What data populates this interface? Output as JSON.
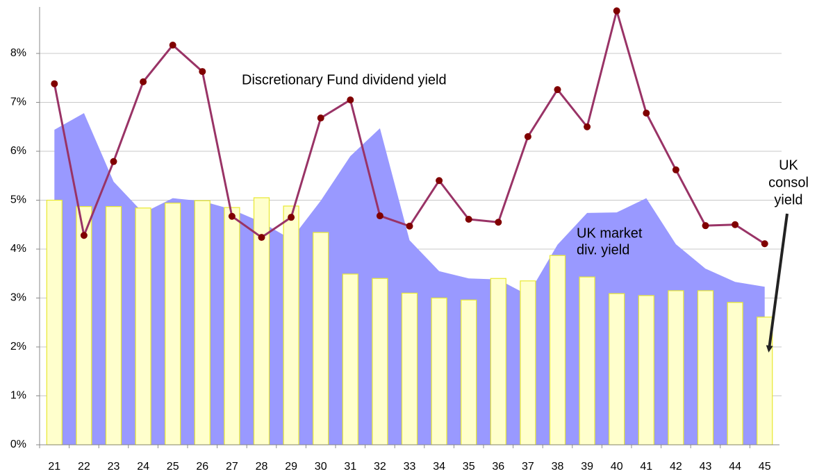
{
  "chart_data": {
    "type": "combo",
    "categories": [
      "21",
      "22",
      "23",
      "24",
      "25",
      "26",
      "27",
      "28",
      "29",
      "30",
      "31",
      "32",
      "33",
      "34",
      "35",
      "36",
      "37",
      "38",
      "39",
      "40",
      "41",
      "42",
      "43",
      "44",
      "45"
    ],
    "series": [
      {
        "kind": "area",
        "color": "#9999ff",
        "values": [
          6.44,
          6.78,
          5.38,
          4.74,
          5.04,
          4.98,
          4.81,
          4.55,
          4.2,
          4.99,
          5.9,
          6.47,
          4.18,
          3.55,
          3.4,
          3.38,
          3.06,
          4.09,
          4.74,
          4.75,
          5.04,
          4.1,
          3.6,
          3.33,
          3.23
        ]
      },
      {
        "kind": "bar",
        "color": "#ffffcc",
        "values": [
          5.0,
          4.87,
          4.87,
          4.84,
          4.94,
          4.99,
          4.85,
          5.05,
          4.88,
          4.34,
          3.49,
          3.4,
          3.1,
          3.0,
          2.96,
          3.4,
          3.35,
          3.87,
          3.43,
          3.09,
          3.05,
          3.15,
          3.15,
          2.91,
          2.61
        ]
      },
      {
        "kind": "line",
        "color": "#993366",
        "values": [
          7.38,
          4.28,
          5.79,
          7.42,
          8.17,
          7.63,
          4.67,
          4.24,
          4.65,
          6.68,
          7.05,
          4.68,
          4.47,
          5.4,
          4.61,
          4.55,
          6.3,
          7.26,
          6.5,
          8.87,
          6.78,
          5.62,
          4.48,
          4.5,
          4.11
        ]
      }
    ],
    "ylim": [
      0,
      9
    ],
    "yticks": [
      {
        "value": 0,
        "label": "0%"
      },
      {
        "value": 1,
        "label": "1%"
      },
      {
        "value": 2,
        "label": "2%"
      },
      {
        "value": 3,
        "label": "3%"
      },
      {
        "value": 4,
        "label": "4%"
      },
      {
        "value": 5,
        "label": "5%"
      },
      {
        "value": 6,
        "label": "6%"
      },
      {
        "value": 7,
        "label": "7%"
      },
      {
        "value": 8,
        "label": "8%"
      }
    ],
    "grid": true,
    "annotations": [
      [
        "Discretionary Fund dividend yield"
      ],
      [
        "UK market",
        "div. yield"
      ],
      [
        "UK",
        "consol",
        "yield"
      ]
    ]
  }
}
